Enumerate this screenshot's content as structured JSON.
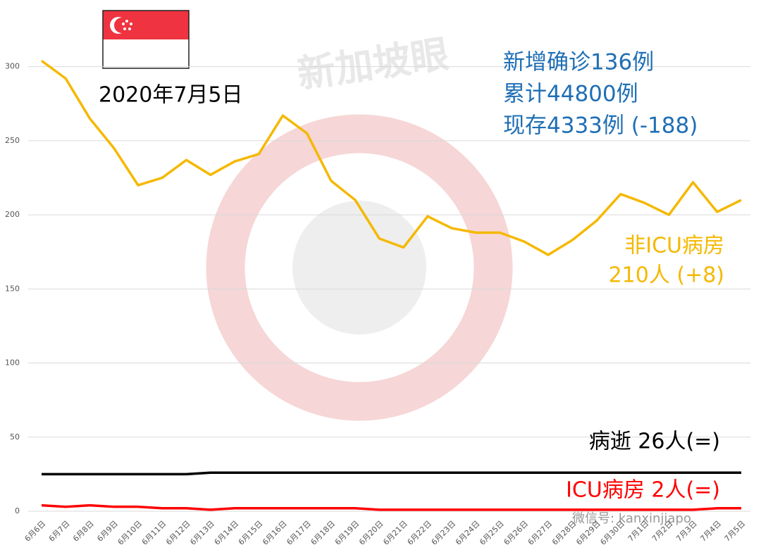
{
  "chart_data": {
    "type": "line",
    "title": "2020年7月5日",
    "summary": [
      "新增确诊136例",
      "累计44800例",
      "现存4333例 (-188)"
    ],
    "summary_color": "#1f6fb5",
    "watermarks": [
      "新加坡眼",
      "微信号: kanxinjiapo"
    ],
    "categories": [
      "6月6日",
      "6月7日",
      "6月8日",
      "6月9日",
      "6月10日",
      "6月11日",
      "6月12日",
      "6月13日",
      "6月14日",
      "6月15日",
      "6月16日",
      "6月17日",
      "6月18日",
      "6月19日",
      "6月20日",
      "6月21日",
      "6月22日",
      "6月23日",
      "6月24日",
      "6月25日",
      "6月26日",
      "6月27日",
      "6月28日",
      "6月29日",
      "6月30日",
      "7月1日",
      "7月2日",
      "7月3日",
      "7月4日",
      "7月5日"
    ],
    "series": [
      {
        "name": "非ICU病房",
        "label": "210人 (+8)",
        "color": "#f5b800",
        "values": [
          304,
          292,
          265,
          245,
          220,
          225,
          237,
          227,
          236,
          241,
          267,
          255,
          223,
          210,
          184,
          178,
          199,
          191,
          188,
          188,
          182,
          173,
          183,
          196,
          214,
          208,
          200,
          222,
          202,
          210
        ]
      },
      {
        "name": "病逝 26人(=)",
        "color": "#000000",
        "values": [
          25,
          25,
          25,
          25,
          25,
          25,
          25,
          26,
          26,
          26,
          26,
          26,
          26,
          26,
          26,
          26,
          26,
          26,
          26,
          26,
          26,
          26,
          26,
          26,
          26,
          26,
          26,
          26,
          26,
          26
        ]
      },
      {
        "name": "ICU病房 2人(=)",
        "color": "#ff0000",
        "values": [
          4,
          3,
          4,
          3,
          3,
          2,
          2,
          1,
          2,
          2,
          2,
          2,
          2,
          2,
          1,
          1,
          1,
          1,
          1,
          1,
          1,
          1,
          1,
          1,
          1,
          1,
          1,
          1,
          2,
          2
        ]
      }
    ],
    "ylim": [
      0,
      335
    ],
    "yticks": [
      0,
      50,
      100,
      150,
      200,
      250,
      300
    ],
    "grid": true
  }
}
